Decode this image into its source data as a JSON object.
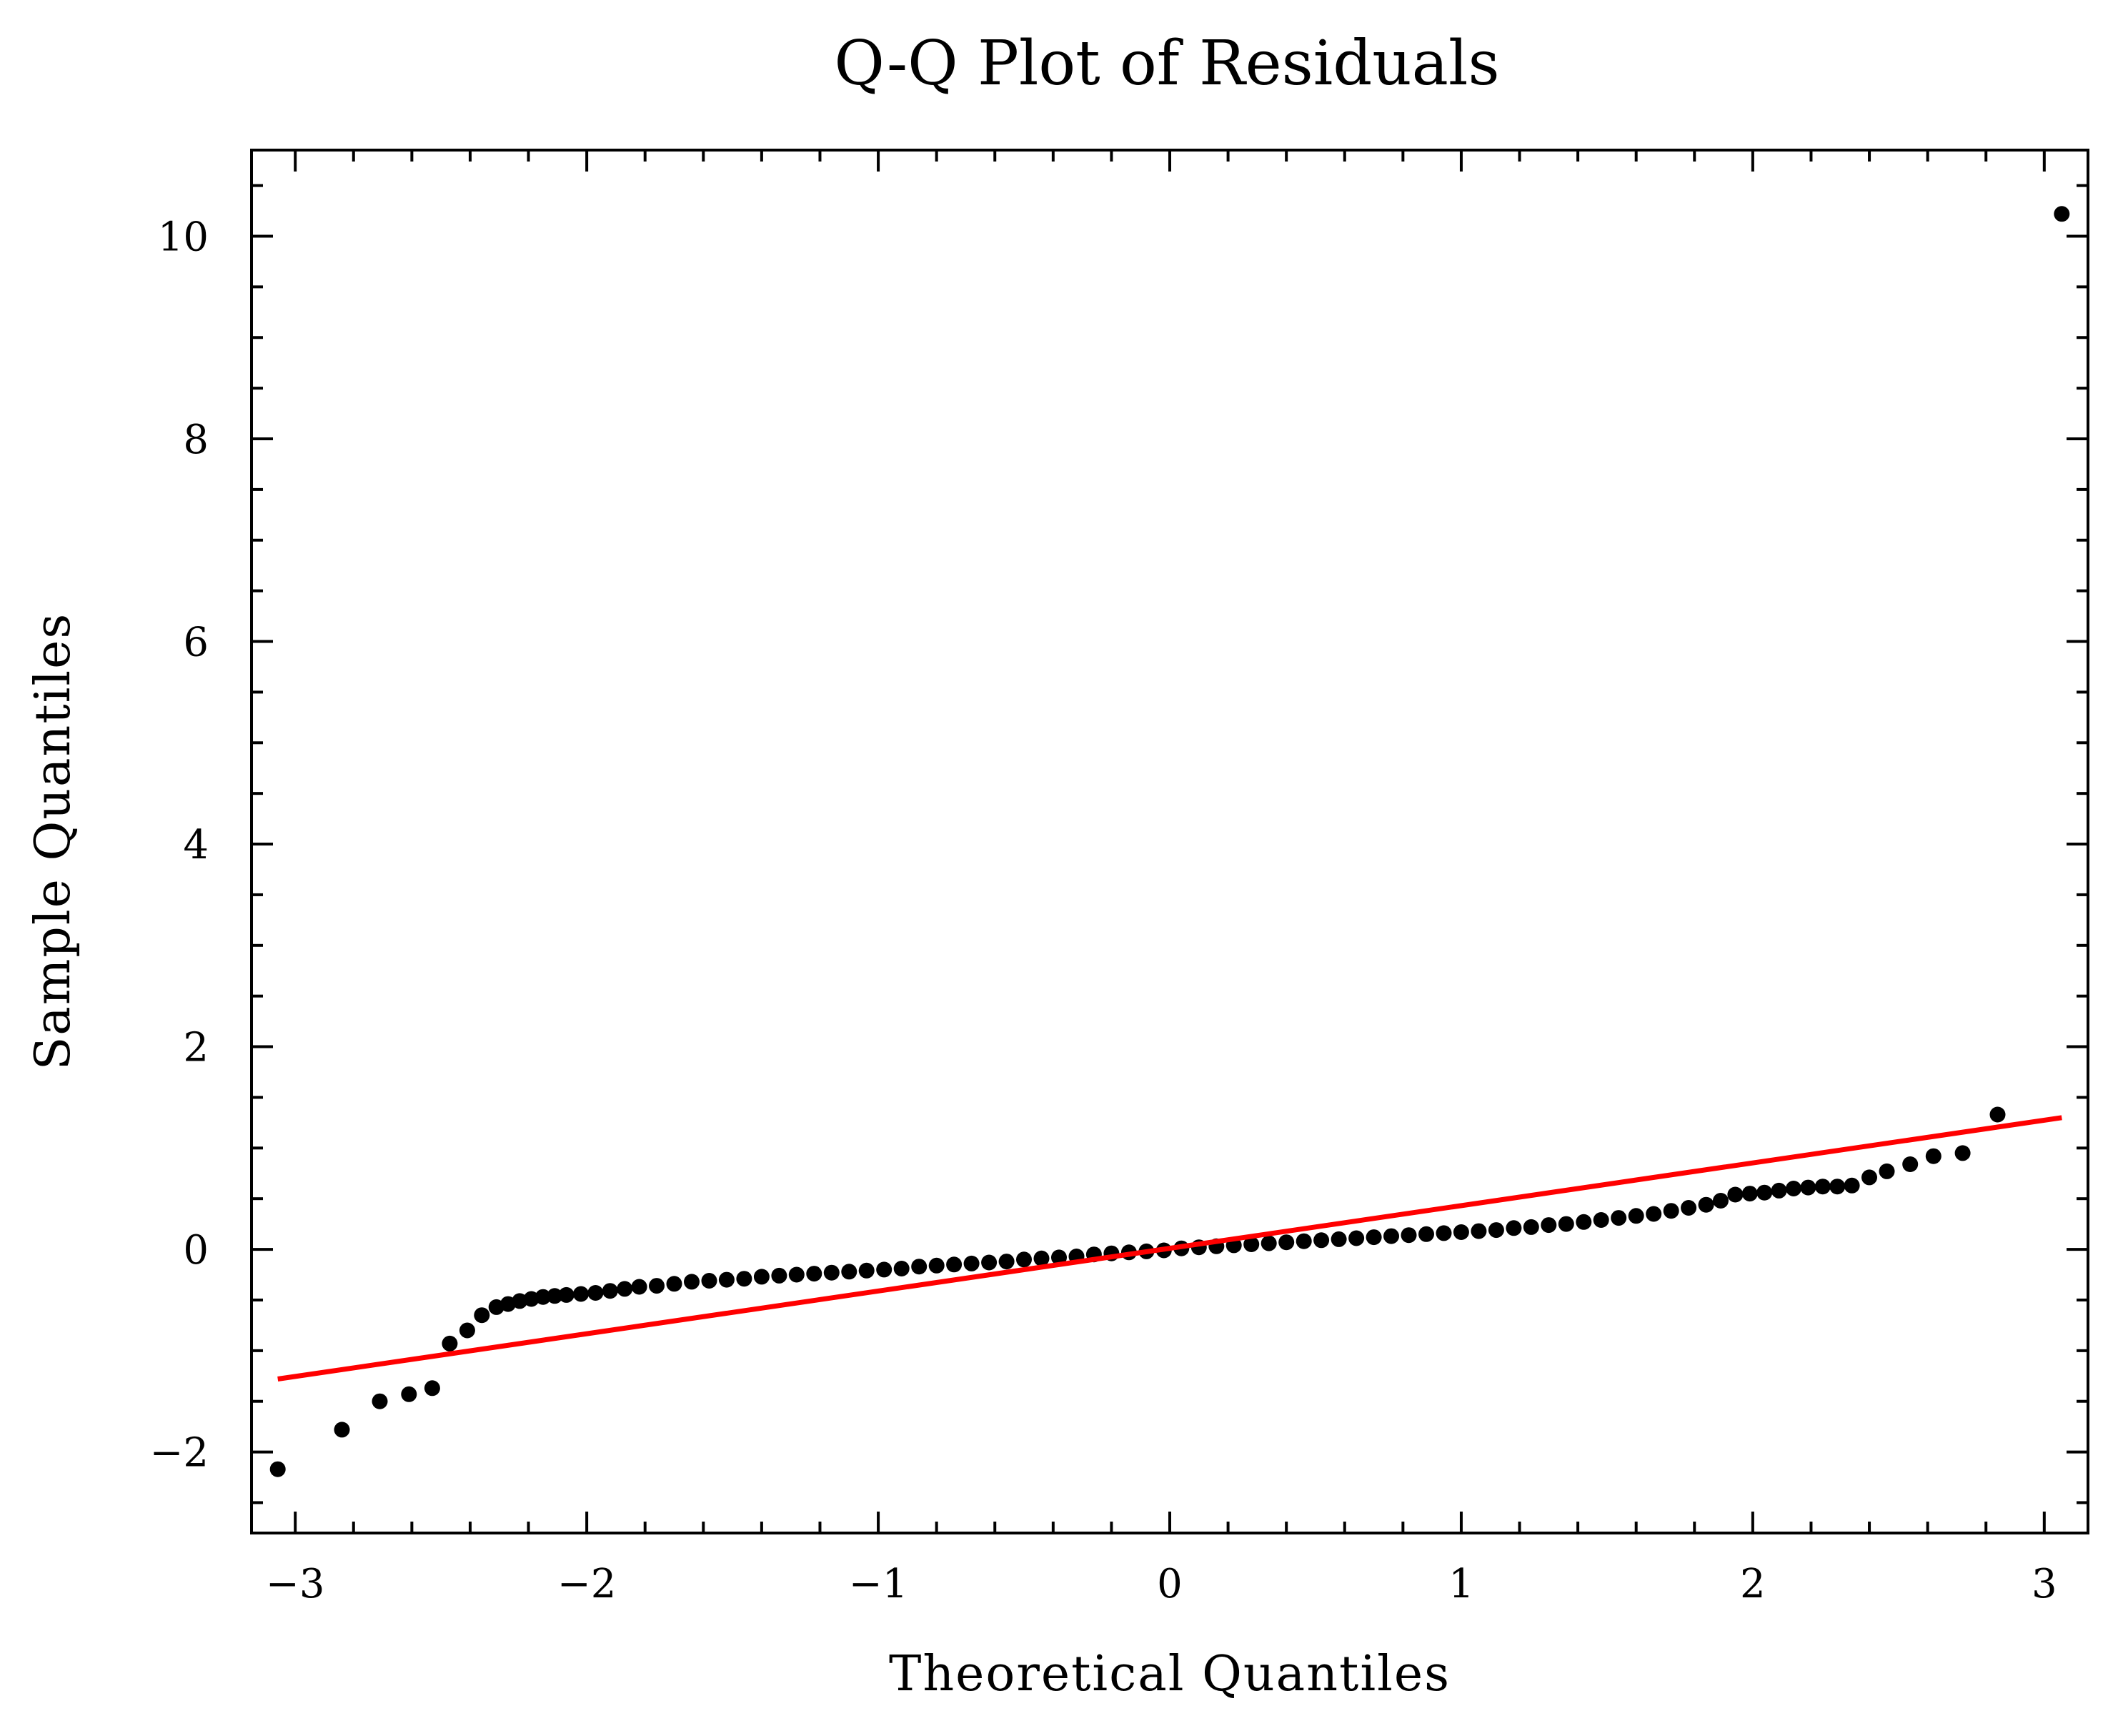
{
  "chart_data": {
    "type": "scatter",
    "title": "Q-Q Plot of Residuals",
    "xlabel": "Theoretical Quantiles",
    "ylabel": "Sample Quantiles",
    "xlim": [
      -3.15,
      3.15
    ],
    "ylim": [
      -2.8,
      10.85
    ],
    "xticks": [
      -3,
      -2,
      -1,
      0,
      1,
      2,
      3
    ],
    "xtick_labels": [
      "−3",
      "−2",
      "−1",
      "0",
      "1",
      "2",
      "3"
    ],
    "yticks": [
      -2,
      0,
      2,
      4,
      6,
      8,
      10
    ],
    "ytick_labels": [
      "−2",
      "0",
      "2",
      "4",
      "6",
      "8",
      "10"
    ],
    "grid": false,
    "colors": {
      "points": "#000000",
      "reference_line": "#ff0000"
    },
    "reference_line": {
      "x": [
        -3.06,
        3.06
      ],
      "y": [
        -1.28,
        1.3
      ]
    },
    "series": [
      {
        "values": [
          [
            -3.06,
            -2.17
          ],
          [
            -2.84,
            -1.78
          ],
          [
            -2.71,
            -1.5
          ],
          [
            -2.61,
            -1.43
          ],
          [
            -2.53,
            -1.37
          ],
          [
            -2.47,
            -0.93
          ],
          [
            -2.41,
            -0.8
          ],
          [
            -2.36,
            -0.65
          ],
          [
            -2.31,
            -0.57
          ],
          [
            -2.27,
            -0.54
          ],
          [
            -2.23,
            -0.51
          ],
          [
            -2.19,
            -0.49
          ],
          [
            -2.15,
            -0.47
          ],
          [
            -2.11,
            -0.46
          ],
          [
            -2.07,
            -0.45
          ],
          [
            -2.02,
            -0.44
          ],
          [
            -1.97,
            -0.43
          ],
          [
            -1.92,
            -0.41
          ],
          [
            -1.87,
            -0.39
          ],
          [
            -1.82,
            -0.37
          ],
          [
            -1.76,
            -0.36
          ],
          [
            -1.7,
            -0.34
          ],
          [
            -1.64,
            -0.32
          ],
          [
            -1.58,
            -0.31
          ],
          [
            -1.52,
            -0.3
          ],
          [
            -1.46,
            -0.29
          ],
          [
            -1.4,
            -0.27
          ],
          [
            -1.34,
            -0.26
          ],
          [
            -1.28,
            -0.25
          ],
          [
            -1.22,
            -0.24
          ],
          [
            -1.16,
            -0.23
          ],
          [
            -1.1,
            -0.22
          ],
          [
            -1.04,
            -0.21
          ],
          [
            -0.98,
            -0.2
          ],
          [
            -0.92,
            -0.19
          ],
          [
            -0.86,
            -0.17
          ],
          [
            -0.8,
            -0.16
          ],
          [
            -0.74,
            -0.15
          ],
          [
            -0.68,
            -0.14
          ],
          [
            -0.62,
            -0.13
          ],
          [
            -0.56,
            -0.12
          ],
          [
            -0.5,
            -0.1
          ],
          [
            -0.44,
            -0.09
          ],
          [
            -0.38,
            -0.08
          ],
          [
            -0.32,
            -0.07
          ],
          [
            -0.26,
            -0.05
          ],
          [
            -0.2,
            -0.04
          ],
          [
            -0.14,
            -0.03
          ],
          [
            -0.08,
            -0.02
          ],
          [
            -0.02,
            -0.01
          ],
          [
            0.04,
            0.01
          ],
          [
            0.1,
            0.02
          ],
          [
            0.16,
            0.03
          ],
          [
            0.22,
            0.04
          ],
          [
            0.28,
            0.05
          ],
          [
            0.34,
            0.06
          ],
          [
            0.4,
            0.07
          ],
          [
            0.46,
            0.08
          ],
          [
            0.52,
            0.09
          ],
          [
            0.58,
            0.1
          ],
          [
            0.64,
            0.11
          ],
          [
            0.7,
            0.12
          ],
          [
            0.76,
            0.13
          ],
          [
            0.82,
            0.14
          ],
          [
            0.88,
            0.15
          ],
          [
            0.94,
            0.16
          ],
          [
            1.0,
            0.17
          ],
          [
            1.06,
            0.18
          ],
          [
            1.12,
            0.19
          ],
          [
            1.18,
            0.21
          ],
          [
            1.24,
            0.22
          ],
          [
            1.3,
            0.24
          ],
          [
            1.36,
            0.25
          ],
          [
            1.42,
            0.27
          ],
          [
            1.48,
            0.29
          ],
          [
            1.54,
            0.31
          ],
          [
            1.6,
            0.33
          ],
          [
            1.66,
            0.35
          ],
          [
            1.72,
            0.38
          ],
          [
            1.78,
            0.41
          ],
          [
            1.84,
            0.44
          ],
          [
            1.89,
            0.48
          ],
          [
            1.94,
            0.54
          ],
          [
            1.99,
            0.55
          ],
          [
            2.04,
            0.56
          ],
          [
            2.09,
            0.58
          ],
          [
            2.14,
            0.6
          ],
          [
            2.19,
            0.61
          ],
          [
            2.24,
            0.62
          ],
          [
            2.29,
            0.62
          ],
          [
            2.34,
            0.63
          ],
          [
            2.4,
            0.71
          ],
          [
            2.46,
            0.77
          ],
          [
            2.54,
            0.84
          ],
          [
            2.62,
            0.92
          ],
          [
            2.72,
            0.95
          ],
          [
            2.84,
            1.33
          ],
          [
            3.06,
            10.22
          ]
        ]
      }
    ]
  }
}
